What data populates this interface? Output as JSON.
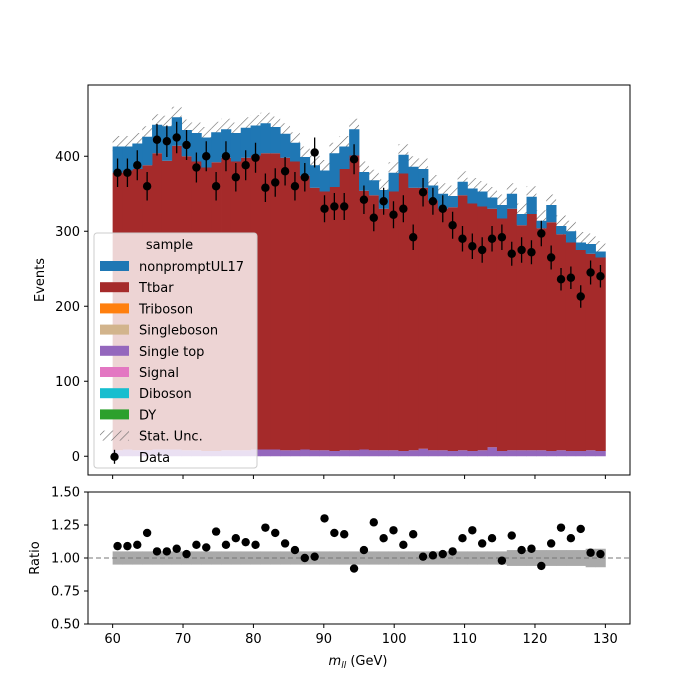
{
  "chart_data": {
    "type": "bar",
    "stacked": true,
    "x_unit_label": "m_ll (GeV)",
    "xlim": [
      56.5,
      133.5
    ],
    "x_ticks": [
      60,
      70,
      80,
      90,
      100,
      110,
      120,
      130
    ],
    "bins": {
      "start": 60,
      "width": 1.4,
      "count": 50
    },
    "main_panel": {
      "ylabel": "Events",
      "ylim": [
        -25,
        495
      ],
      "y_ticks": [
        0,
        100,
        200,
        300,
        400
      ],
      "legend": {
        "title": "sample",
        "placement": "left-middle",
        "entries": [
          {
            "label": "nonpromptUL17",
            "color": "#1f77b4",
            "kind": "patch"
          },
          {
            "label": "Ttbar",
            "color": "#a52a2a",
            "kind": "patch"
          },
          {
            "label": "Triboson",
            "color": "#ff7f0e",
            "kind": "patch"
          },
          {
            "label": "Singleboson",
            "color": "#d2b48c",
            "kind": "patch"
          },
          {
            "label": "Single top",
            "color": "#9467bd",
            "kind": "patch"
          },
          {
            "label": "Signal",
            "color": "#e377c2",
            "kind": "patch"
          },
          {
            "label": "Diboson",
            "color": "#17becf",
            "kind": "patch"
          },
          {
            "label": "DY",
            "color": "#2ca02c",
            "kind": "patch"
          },
          {
            "label": "Stat. Unc.",
            "color": "#808080",
            "kind": "hatch"
          },
          {
            "label": "Data",
            "color": "#000000",
            "kind": "errorbar"
          }
        ]
      },
      "series": [
        {
          "name": "Single top",
          "color": "#9467bd",
          "values": [
            8,
            9,
            8,
            8,
            9,
            9,
            9,
            8,
            8,
            7,
            7,
            8,
            8,
            8,
            9,
            9,
            9,
            8,
            8,
            9,
            8,
            8,
            7,
            8,
            8,
            9,
            8,
            8,
            8,
            7,
            8,
            10,
            8,
            8,
            7,
            8,
            7,
            8,
            12,
            7,
            8,
            8,
            8,
            8,
            7,
            8,
            7,
            7,
            8,
            7
          ]
        },
        {
          "name": "Ttbar",
          "color": "#a52a2a",
          "values": [
            370,
            372,
            375,
            380,
            395,
            385,
            405,
            392,
            385,
            378,
            385,
            390,
            385,
            390,
            392,
            395,
            395,
            390,
            385,
            365,
            350,
            345,
            352,
            375,
            393,
            345,
            340,
            322,
            345,
            370,
            350,
            348,
            333,
            322,
            325,
            340,
            330,
            325,
            318,
            310,
            322,
            300,
            315,
            296,
            305,
            288,
            278,
            268,
            262,
            258
          ]
        },
        {
          "name": "nonpromptUL17",
          "color": "#1f77b4",
          "values": [
            35,
            32,
            34,
            38,
            38,
            46,
            38,
            35,
            38,
            40,
            40,
            38,
            38,
            40,
            40,
            40,
            35,
            32,
            25,
            25,
            30,
            28,
            45,
            30,
            35,
            25,
            20,
            25,
            25,
            25,
            28,
            25,
            20,
            20,
            15,
            18,
            20,
            20,
            15,
            18,
            20,
            15,
            23,
            10,
            23,
            11,
            15,
            10,
            13,
            8
          ]
        },
        {
          "name": "Triboson",
          "color": "#ff7f0e",
          "values": []
        },
        {
          "name": "Singleboson",
          "color": "#d2b48c",
          "values": []
        },
        {
          "name": "Signal",
          "color": "#e377c2",
          "values": []
        },
        {
          "name": "Diboson",
          "color": "#17becf",
          "values": []
        },
        {
          "name": "DY",
          "color": "#2ca02c",
          "values": []
        }
      ],
      "stat_unc_half_height": 14,
      "data_points": {
        "name": "Data",
        "x": [
          60.7,
          62.1,
          63.5,
          64.9,
          66.3,
          67.7,
          69.1,
          70.5,
          71.9,
          73.3,
          74.7,
          76.1,
          77.5,
          78.9,
          80.3,
          81.7,
          83.1,
          84.5,
          85.9,
          87.3,
          88.7,
          90.1,
          91.5,
          92.9,
          94.3,
          95.7,
          97.1,
          98.5,
          99.9,
          101.3,
          102.7,
          104.1,
          105.5,
          106.9,
          108.3,
          109.7,
          111.1,
          112.5,
          113.9,
          115.3,
          116.7,
          118.1,
          119.5,
          120.9,
          122.3,
          123.7,
          125.1,
          126.5,
          127.9,
          129.3
        ],
        "y": [
          378,
          378,
          388,
          360,
          422,
          420,
          425,
          415,
          385,
          400,
          360,
          400,
          372,
          388,
          398,
          358,
          365,
          380,
          360,
          372,
          405,
          330,
          333,
          333,
          396,
          342,
          318,
          340,
          322,
          330,
          292,
          352,
          340,
          330,
          308,
          290,
          280,
          275,
          290,
          292,
          270,
          275,
          272,
          297,
          265,
          236,
          238,
          213,
          245,
          240
        ],
        "yerr": [
          19,
          19,
          20,
          19,
          21,
          21,
          21,
          20,
          20,
          20,
          19,
          20,
          19,
          20,
          20,
          19,
          19,
          19,
          19,
          19,
          20,
          18,
          18,
          18,
          20,
          19,
          18,
          18,
          18,
          18,
          17,
          19,
          18,
          18,
          18,
          17,
          17,
          17,
          17,
          17,
          16,
          17,
          16,
          17,
          16,
          15,
          15,
          15,
          16,
          15
        ]
      }
    },
    "ratio_panel": {
      "ylabel": "Ratio",
      "ylim": [
        0.5,
        1.5
      ],
      "y_ticks": [
        "0.50",
        "0.75",
        "1.00",
        "1.25",
        "1.50"
      ],
      "reference_line": 1.0,
      "band_color": "#aaaaaa",
      "band_half_width": [
        0.05,
        0.05,
        0.05,
        0.05,
        0.05,
        0.05,
        0.05,
        0.05,
        0.05,
        0.05,
        0.05,
        0.05,
        0.05,
        0.05,
        0.05,
        0.05,
        0.05,
        0.05,
        0.05,
        0.05,
        0.05,
        0.05,
        0.05,
        0.05,
        0.05,
        0.05,
        0.05,
        0.05,
        0.05,
        0.05,
        0.05,
        0.05,
        0.05,
        0.05,
        0.05,
        0.05,
        0.05,
        0.05,
        0.05,
        0.05,
        0.06,
        0.06,
        0.06,
        0.06,
        0.06,
        0.06,
        0.06,
        0.06,
        0.07,
        0.07
      ],
      "points": {
        "x": [
          60.7,
          62.1,
          63.5,
          64.9,
          66.3,
          67.7,
          69.1,
          70.5,
          71.9,
          73.3,
          74.7,
          76.1,
          77.5,
          78.9,
          80.3,
          81.7,
          83.1,
          84.5,
          85.9,
          87.3,
          88.7,
          90.1,
          91.5,
          92.9,
          94.3,
          95.7,
          97.1,
          98.5,
          99.9,
          101.3,
          102.7,
          104.1,
          105.5,
          106.9,
          108.3,
          109.7,
          111.1,
          112.5,
          113.9,
          115.3,
          116.7,
          118.1,
          119.5,
          120.9,
          122.3,
          123.7,
          125.1,
          126.5,
          127.9,
          129.3
        ],
        "y": [
          1.09,
          1.09,
          1.1,
          1.19,
          1.05,
          1.05,
          1.07,
          1.03,
          1.1,
          1.08,
          1.2,
          1.1,
          1.15,
          1.12,
          1.1,
          1.23,
          1.19,
          1.11,
          1.06,
          1.0,
          1.01,
          1.3,
          1.19,
          1.18,
          0.92,
          1.06,
          1.27,
          1.15,
          1.21,
          1.1,
          1.18,
          1.01,
          1.02,
          1.03,
          1.05,
          1.15,
          1.21,
          1.11,
          1.15,
          0.98,
          1.17,
          1.06,
          1.07,
          0.94,
          1.11,
          1.23,
          1.15,
          1.22,
          1.04,
          1.03
        ]
      }
    }
  }
}
